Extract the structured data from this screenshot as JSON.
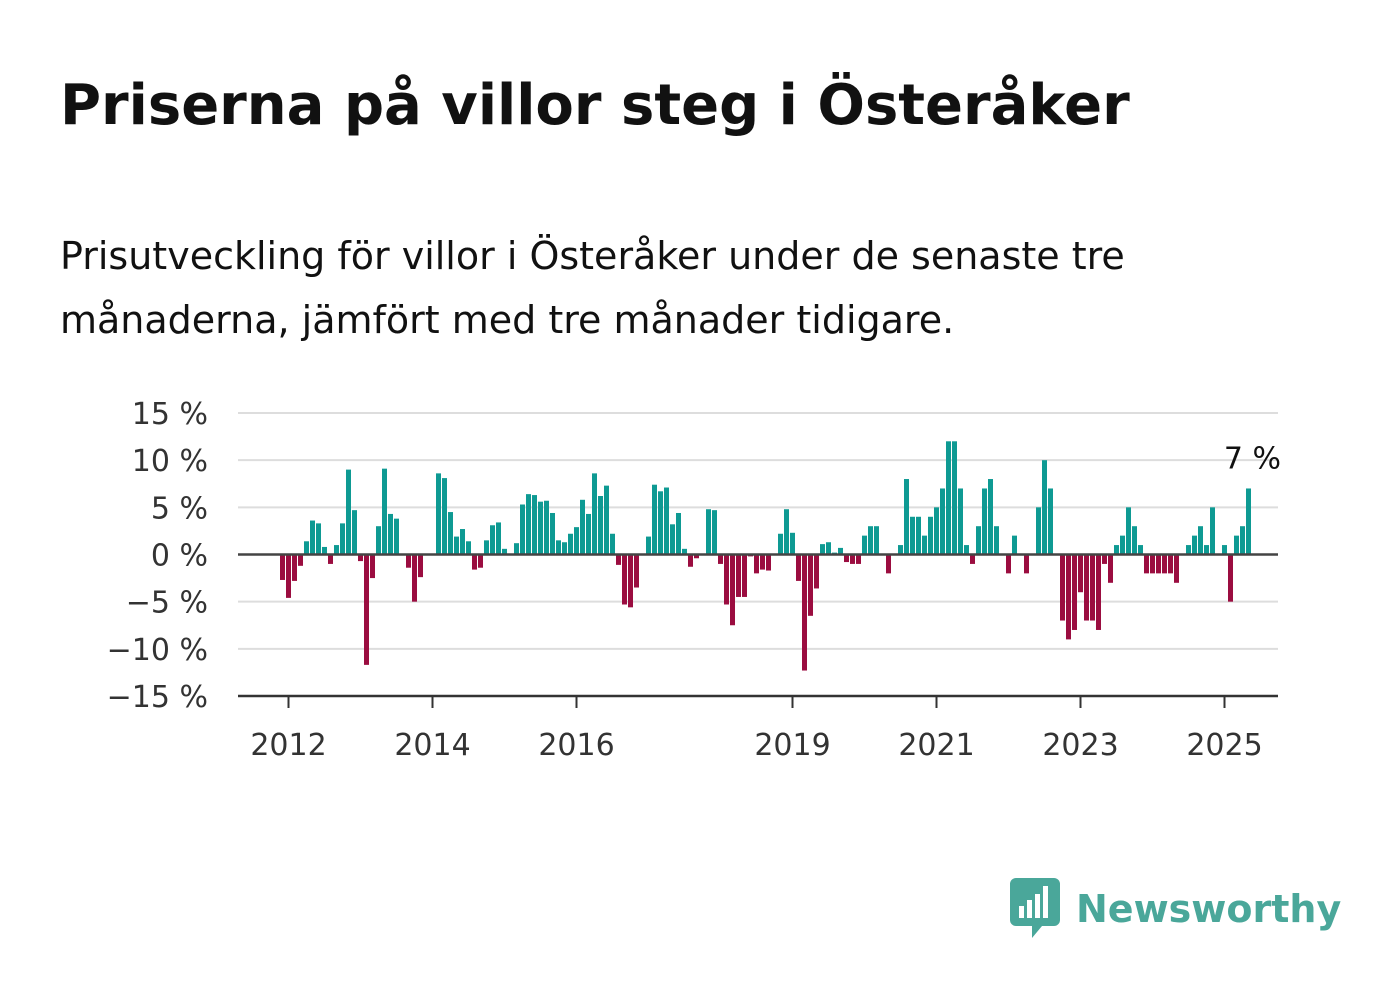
{
  "title": "Priserna på villor steg i Österåker",
  "subtitle": "Prisutveckling för villor i Österåker under de senaste tre månaderna, jämfört med tre månader tidigare.",
  "brand": {
    "name": "Newsworthy",
    "color": "#4aa79a",
    "icon": "bar-chart-speech-bubble-icon"
  },
  "colors": {
    "positive": "#0e9a93",
    "negative": "#9b0d40",
    "grid": "#dddddd",
    "axis": "#333333"
  },
  "chart_data": {
    "type": "bar",
    "ylim": [
      -15,
      15
    ],
    "yticks": [
      15,
      10,
      5,
      0,
      -5,
      -10,
      -15
    ],
    "ytick_labels": [
      "15 %",
      "10 %",
      "5 %",
      "0 %",
      "−5 %",
      "−10 %",
      "−15 %"
    ],
    "xtick_labels": [
      "2012",
      "2014",
      "2016",
      "2019",
      "2021",
      "2023",
      "2025"
    ],
    "xtick_years": [
      2012,
      2014,
      2016,
      2019,
      2021,
      2023,
      2025
    ],
    "end_label": "7 %",
    "unit": "%",
    "grid": true,
    "start": "2011-12",
    "values": [
      -2.7,
      -4.6,
      -2.8,
      -1.2,
      1.4,
      3.6,
      3.3,
      0.8,
      -1.0,
      1.0,
      3.3,
      9.0,
      4.7,
      -0.7,
      -11.7,
      -2.5,
      3.0,
      9.1,
      4.3,
      3.8,
      0.0,
      -1.4,
      -5.0,
      -2.4,
      0.0,
      0.0,
      8.6,
      8.1,
      4.5,
      1.9,
      2.7,
      1.4,
      -1.6,
      -1.4,
      1.5,
      3.1,
      3.4,
      0.6,
      0.0,
      1.2,
      5.3,
      6.4,
      6.3,
      5.6,
      5.7,
      4.4,
      1.5,
      1.3,
      2.2,
      2.9,
      5.8,
      4.3,
      8.6,
      6.2,
      7.3,
      2.2,
      -1.1,
      -5.3,
      -5.6,
      -3.5,
      0.0,
      1.9,
      7.4,
      6.7,
      7.1,
      3.2,
      4.4,
      0.6,
      -1.3,
      -0.4,
      0.0,
      4.8,
      4.7,
      -1.0,
      -5.3,
      -7.5,
      -4.5,
      -4.5,
      -0.2,
      -2.0,
      -1.6,
      -1.7,
      0.0,
      2.2,
      4.8,
      2.3,
      -2.8,
      -12.3,
      -6.5,
      -3.6,
      1.1,
      1.3,
      0.2,
      0.7,
      -0.8,
      -1.0,
      -1.0,
      2.0,
      3.0,
      3.0,
      0.0,
      -2.0,
      0.0,
      1.0,
      8.0,
      4.0,
      4.0,
      2.0,
      4.0,
      5.0,
      7.0,
      12.0,
      12.0,
      7.0,
      1.0,
      -1.0,
      3.0,
      7.0,
      8.0,
      3.0,
      0.0,
      -2.0,
      2.0,
      0.0,
      -2.0,
      0.0,
      5.0,
      10.0,
      7.0,
      0.0,
      -7.0,
      -9.0,
      -8.0,
      -4.0,
      -7.0,
      -7.0,
      -8.0,
      -1.0,
      -3.0,
      1.0,
      2.0,
      5.0,
      3.0,
      1.0,
      -2.0,
      -2.0,
      -2.0,
      -2.0,
      -2.0,
      -3.0,
      0.0,
      1.0,
      2.0,
      3.0,
      1.0,
      5.0,
      0.0,
      1.0,
      -5.0,
      2.0,
      3.0,
      7.0
    ]
  }
}
